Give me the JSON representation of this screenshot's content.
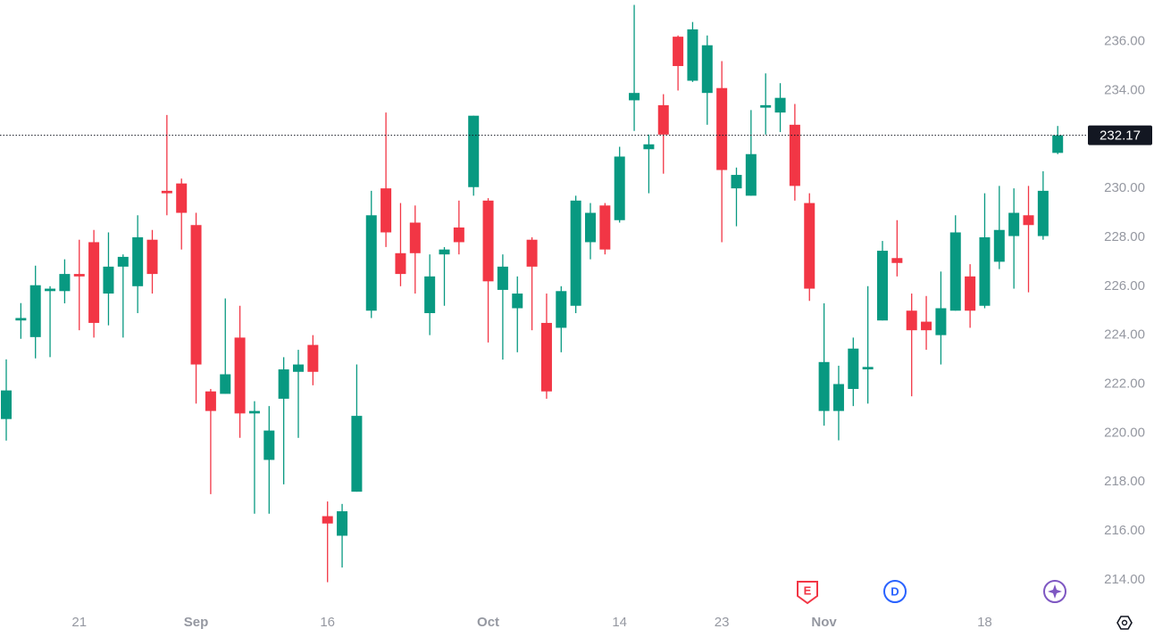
{
  "chart_data": {
    "type": "candlestick",
    "categories": [
      null,
      null,
      null,
      null,
      null,
      "21",
      null,
      null,
      null,
      null,
      null,
      null,
      null,
      "Sep",
      null,
      null,
      null,
      null,
      null,
      null,
      null,
      null,
      "16",
      null,
      null,
      null,
      null,
      null,
      null,
      null,
      null,
      null,
      null,
      "Oct",
      null,
      null,
      null,
      null,
      null,
      null,
      null,
      null,
      "14",
      null,
      null,
      null,
      null,
      null,
      null,
      "23",
      null,
      null,
      null,
      null,
      null,
      null,
      "Nov",
      null,
      null,
      null,
      null,
      null,
      null,
      null,
      null,
      null,
      null,
      "18",
      null,
      null,
      null,
      null,
      null
    ],
    "open": [
      220.57,
      224.6,
      223.92,
      225.8,
      225.8,
      226.5,
      227.8,
      225.7,
      226.8,
      226.0,
      227.9,
      229.9,
      230.2,
      228.5,
      221.7,
      221.6,
      223.9,
      220.8,
      218.9,
      221.4,
      222.5,
      223.6,
      216.6,
      215.8,
      217.6,
      225.0,
      230.0,
      227.35,
      228.6,
      224.9,
      227.3,
      228.4,
      230.05,
      229.5,
      225.85,
      225.1,
      227.9,
      224.5,
      224.3,
      225.2,
      227.8,
      229.3,
      228.7,
      233.6,
      231.6,
      233.4,
      236.2,
      234.4,
      233.9,
      234.1,
      230.0,
      229.7,
      233.3,
      233.1,
      232.6,
      229.4,
      220.9,
      220.9,
      221.8,
      222.6,
      224.6,
      227.15,
      225.0,
      224.55,
      224.0,
      225.0,
      226.4,
      225.2,
      227.0,
      228.05,
      228.9,
      228.05,
      231.45
    ],
    "high": [
      223.01,
      225.31,
      226.84,
      226.0,
      227.1,
      227.9,
      228.3,
      228.2,
      227.3,
      228.9,
      228.3,
      233.0,
      230.4,
      229.0,
      221.8,
      225.5,
      225.2,
      221.3,
      221.1,
      223.1,
      223.4,
      224.0,
      217.2,
      217.1,
      222.8,
      229.9,
      233.1,
      229.4,
      229.3,
      227.3,
      227.6,
      229.5,
      232.97,
      229.6,
      227.3,
      226.4,
      228.0,
      225.7,
      226.0,
      229.7,
      229.4,
      229.4,
      231.7,
      237.5,
      232.2,
      233.85,
      236.25,
      236.8,
      236.25,
      235.2,
      230.85,
      233.2,
      234.7,
      234.3,
      233.45,
      229.8,
      225.3,
      222.75,
      223.9,
      226.0,
      227.85,
      228.7,
      225.7,
      225.6,
      226.6,
      228.9,
      226.9,
      229.8,
      230.1,
      230.0,
      230.1,
      230.7,
      232.55
    ],
    "low": [
      219.69,
      223.85,
      223.05,
      223.1,
      225.3,
      224.2,
      223.9,
      224.4,
      223.9,
      224.9,
      225.7,
      228.9,
      227.5,
      221.2,
      217.5,
      221.6,
      219.8,
      216.7,
      216.7,
      217.9,
      219.8,
      221.95,
      213.9,
      214.5,
      217.6,
      224.7,
      227.6,
      226.0,
      225.7,
      224.0,
      225.2,
      227.3,
      229.7,
      223.7,
      223.0,
      223.3,
      224.2,
      221.4,
      223.3,
      224.9,
      227.1,
      227.3,
      228.6,
      232.35,
      229.8,
      230.6,
      234.0,
      234.35,
      232.6,
      227.8,
      228.45,
      229.7,
      232.2,
      232.3,
      229.5,
      225.4,
      220.3,
      219.7,
      221.1,
      221.2,
      224.6,
      226.4,
      221.5,
      223.4,
      222.8,
      225.0,
      224.3,
      225.1,
      226.7,
      225.9,
      225.75,
      227.9,
      231.4
    ],
    "close": [
      221.74,
      224.7,
      226.04,
      225.9,
      226.5,
      226.4,
      224.5,
      226.8,
      227.2,
      228.0,
      226.5,
      229.8,
      229.0,
      222.8,
      220.9,
      222.4,
      220.8,
      220.9,
      220.1,
      222.6,
      222.8,
      222.5,
      216.3,
      216.8,
      220.7,
      228.9,
      228.2,
      226.5,
      227.35,
      226.4,
      227.5,
      227.8,
      232.97,
      226.2,
      226.8,
      225.7,
      226.8,
      221.7,
      225.8,
      229.5,
      229.0,
      227.5,
      231.3,
      233.9,
      231.8,
      232.2,
      235.0,
      236.5,
      235.85,
      230.75,
      230.55,
      231.4,
      233.4,
      233.7,
      230.1,
      225.9,
      222.9,
      222.0,
      223.45,
      222.7,
      227.45,
      226.95,
      224.2,
      224.2,
      225.1,
      228.2,
      225.0,
      228.0,
      228.3,
      229.0,
      228.5,
      229.9,
      232.17
    ],
    "up_color": "#089981",
    "down_color": "#f23645",
    "ylim": [
      212.9,
      237.7
    ],
    "yticks": [
      {
        "value": 214,
        "label": "214.00"
      },
      {
        "value": 216,
        "label": "216.00"
      },
      {
        "value": 218,
        "label": "218.00"
      },
      {
        "value": 220,
        "label": "220.00"
      },
      {
        "value": 222,
        "label": "222.00"
      },
      {
        "value": 224,
        "label": "224.00"
      },
      {
        "value": 226,
        "label": "226.00"
      },
      {
        "value": 228,
        "label": "228.00"
      },
      {
        "value": 230,
        "label": "230.00"
      },
      {
        "value": 232,
        "label": "232.00"
      },
      {
        "value": 234,
        "label": "234.00"
      },
      {
        "value": 236,
        "label": "236.00"
      }
    ],
    "last_price": 232.17,
    "events": [
      "E",
      "D"
    ]
  }
}
